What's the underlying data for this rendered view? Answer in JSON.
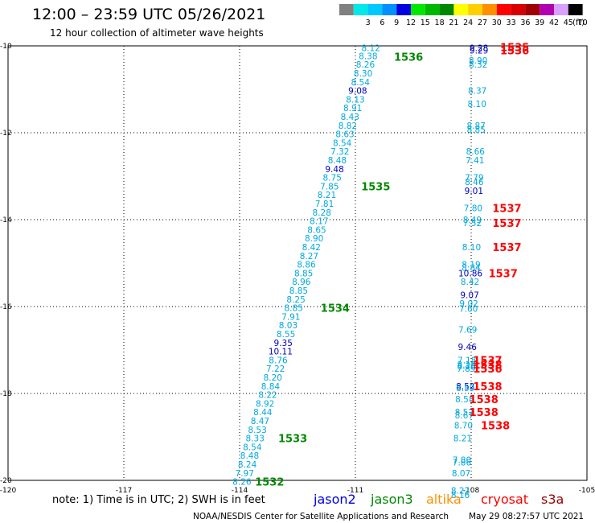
{
  "header": {
    "title": "12:00 – 23:59 UTC 05/26/2021",
    "subtitle": "12 hour collection of altimeter wave heights"
  },
  "scale": {
    "unit": "(ft)",
    "bins": [
      {
        "label": "",
        "color": "#808080"
      },
      {
        "label": "3",
        "color": "#00e8e8"
      },
      {
        "label": "6",
        "color": "#00c8ff"
      },
      {
        "label": "9",
        "color": "#0090ff"
      },
      {
        "label": "12",
        "color": "#0000e0"
      },
      {
        "label": "15",
        "color": "#00e800"
      },
      {
        "label": "18",
        "color": "#00b800"
      },
      {
        "label": "21",
        "color": "#008800"
      },
      {
        "label": "24",
        "color": "#ffff00"
      },
      {
        "label": "27",
        "color": "#ffd000"
      },
      {
        "label": "30",
        "color": "#ff9000"
      },
      {
        "label": "33",
        "color": "#ff0000"
      },
      {
        "label": "36",
        "color": "#d80000"
      },
      {
        "label": "39",
        "color": "#a00000"
      },
      {
        "label": "42",
        "color": "#b000b0"
      },
      {
        "label": "45",
        "color": "#d8a0ff"
      },
      {
        "label": "70",
        "color": "#000000"
      }
    ]
  },
  "footer": {
    "note": "note:  1) Time is in UTC;  2) SWH is in feet",
    "credit": "NOAA/NESDIS Center for Satellite Applications and Research",
    "timestamp": "May 29 08:27:57 UTC 2021"
  },
  "legend": [
    {
      "name": "jason2",
      "color": "#0000e0"
    },
    {
      "name": "jason3",
      "color": "#008800"
    },
    {
      "name": "altika",
      "color": "#ff9000"
    },
    {
      "name": "cryosat",
      "color": "#ff0000"
    },
    {
      "name": "s3a",
      "color": "#a00000"
    }
  ],
  "chart_data": {
    "type": "scatter",
    "title": "12 hour collection of altimeter wave heights",
    "xlabel": "",
    "ylabel": "",
    "xlim": [
      -120,
      -105
    ],
    "ylim": [
      -20,
      -10
    ],
    "xticks": [
      -120,
      -117,
      -114,
      -111,
      -108,
      -105
    ],
    "xtick_labels": [
      "-120",
      "-117",
      "-114",
      "-111",
      "-108",
      "-105"
    ],
    "yticks": [
      -10,
      -12,
      -14,
      -16,
      -18,
      -20
    ],
    "ytick_labels": [
      "-10",
      "-12",
      "-14",
      "-16",
      "-18",
      "-20"
    ],
    "grid": true,
    "tracks": [
      {
        "satellite": "jason3",
        "color": "#00a8e0",
        "points": [
          {
            "x": -110.6,
            "y": -10.05,
            "label": "8.12"
          },
          {
            "x": -110.67,
            "y": -10.23,
            "label": "8.38"
          },
          {
            "x": -110.74,
            "y": -10.43,
            "label": "8.26"
          },
          {
            "x": -110.8,
            "y": -10.63,
            "label": "8.30"
          },
          {
            "x": -110.87,
            "y": -10.83,
            "label": "8.54"
          },
          {
            "x": -110.94,
            "y": -11.03,
            "label": "9.08",
            "color": "#0000c0"
          },
          {
            "x": -111.0,
            "y": -11.23,
            "label": "8.13"
          },
          {
            "x": -111.07,
            "y": -11.43,
            "label": "8.91"
          },
          {
            "x": -111.14,
            "y": -11.63,
            "label": "8.43"
          },
          {
            "x": -111.2,
            "y": -11.83,
            "label": "8.82"
          },
          {
            "x": -111.27,
            "y": -12.03,
            "label": "8.63"
          },
          {
            "x": -111.34,
            "y": -12.23,
            "label": "8.54"
          },
          {
            "x": -111.4,
            "y": -12.43,
            "label": "7.32"
          },
          {
            "x": -111.47,
            "y": -12.63,
            "label": "8.48"
          },
          {
            "x": -111.54,
            "y": -12.83,
            "label": "9.48",
            "color": "#0000c0"
          },
          {
            "x": -111.6,
            "y": -13.03,
            "label": "8.75"
          },
          {
            "x": -111.67,
            "y": -13.23,
            "label": "7.85"
          },
          {
            "x": -111.74,
            "y": -13.43,
            "label": "8.21"
          },
          {
            "x": -111.8,
            "y": -13.63,
            "label": "7.81"
          },
          {
            "x": -111.87,
            "y": -13.83,
            "label": "8.28"
          },
          {
            "x": -111.94,
            "y": -14.03,
            "label": "8.17"
          },
          {
            "x": -112.0,
            "y": -14.23,
            "label": "8.65"
          },
          {
            "x": -112.07,
            "y": -14.43,
            "label": "8.90"
          },
          {
            "x": -112.14,
            "y": -14.63,
            "label": "8.42"
          },
          {
            "x": -112.2,
            "y": -14.83,
            "label": "8.27"
          },
          {
            "x": -112.27,
            "y": -15.03,
            "label": "8.86"
          },
          {
            "x": -112.34,
            "y": -15.23,
            "label": "8.85"
          },
          {
            "x": -112.4,
            "y": -15.43,
            "label": "8.96"
          },
          {
            "x": -112.47,
            "y": -15.63,
            "label": "8.85"
          },
          {
            "x": -112.54,
            "y": -15.83,
            "label": "8.25"
          },
          {
            "x": -112.6,
            "y": -16.03,
            "label": "8.85"
          },
          {
            "x": -112.67,
            "y": -16.23,
            "label": "7.91"
          },
          {
            "x": -112.74,
            "y": -16.43,
            "label": "8.03"
          },
          {
            "x": -112.8,
            "y": -16.63,
            "label": "8.55"
          },
          {
            "x": -112.87,
            "y": -16.83,
            "label": "9.35",
            "color": "#0000c0"
          },
          {
            "x": -112.94,
            "y": -17.03,
            "label": "10.11",
            "color": "#0000c0"
          },
          {
            "x": -113.0,
            "y": -17.23,
            "label": "8.76"
          },
          {
            "x": -113.07,
            "y": -17.43,
            "label": "7.22"
          },
          {
            "x": -113.14,
            "y": -17.63,
            "label": "8.20"
          },
          {
            "x": -113.2,
            "y": -17.83,
            "label": "8.84"
          },
          {
            "x": -113.27,
            "y": -18.03,
            "label": "8.22"
          },
          {
            "x": -113.34,
            "y": -18.23,
            "label": "8.92"
          },
          {
            "x": -113.4,
            "y": -18.43,
            "label": "8.44"
          },
          {
            "x": -113.47,
            "y": -18.63,
            "label": "8.47"
          },
          {
            "x": -113.54,
            "y": -18.83,
            "label": "8.53"
          },
          {
            "x": -113.6,
            "y": -19.03,
            "label": "8.33"
          },
          {
            "x": -113.67,
            "y": -19.23,
            "label": "8.54"
          },
          {
            "x": -113.74,
            "y": -19.43,
            "label": "8.48"
          },
          {
            "x": -113.8,
            "y": -19.63,
            "label": "8.24"
          },
          {
            "x": -113.87,
            "y": -19.83,
            "label": "7.97"
          },
          {
            "x": -113.94,
            "y": -20.03,
            "label": "8.26"
          }
        ]
      },
      {
        "satellite": "cryosat",
        "color": "#00a8e0",
        "points": [
          {
            "x": -107.8,
            "y": -10.05,
            "label": "9.28",
            "color": "#0000c0"
          },
          {
            "x": -107.8,
            "y": -10.1,
            "label": "9.29",
            "color": "#0000c0"
          },
          {
            "x": -107.82,
            "y": -10.33,
            "label": "8.90"
          },
          {
            "x": -107.82,
            "y": -10.43,
            "label": "8.32"
          },
          {
            "x": -107.84,
            "y": -11.03,
            "label": "8.37"
          },
          {
            "x": -107.85,
            "y": -11.33,
            "label": "8.10"
          },
          {
            "x": -107.87,
            "y": -11.83,
            "label": "8.87"
          },
          {
            "x": -107.87,
            "y": -11.93,
            "label": "8.85"
          },
          {
            "x": -107.89,
            "y": -12.43,
            "label": "8.66"
          },
          {
            "x": -107.9,
            "y": -12.63,
            "label": "7.41"
          },
          {
            "x": -107.92,
            "y": -13.03,
            "label": "7.79"
          },
          {
            "x": -107.92,
            "y": -13.13,
            "label": "8.46"
          },
          {
            "x": -107.93,
            "y": -13.33,
            "label": "9.01",
            "color": "#0000c0"
          },
          {
            "x": -107.95,
            "y": -13.73,
            "label": "7.80"
          },
          {
            "x": -107.97,
            "y": -14.0,
            "label": "8.49"
          },
          {
            "x": -107.97,
            "y": -14.07,
            "label": "7.52"
          },
          {
            "x": -107.99,
            "y": -14.63,
            "label": "8.10"
          },
          {
            "x": -108.0,
            "y": -15.03,
            "label": "8.19"
          },
          {
            "x": -108.0,
            "y": -15.1,
            "label": "8.84"
          },
          {
            "x": -108.02,
            "y": -15.23,
            "label": "10.86",
            "color": "#0000c0"
          },
          {
            "x": -108.03,
            "y": -15.43,
            "label": "8.42"
          },
          {
            "x": -108.04,
            "y": -15.73,
            "label": "9.07",
            "color": "#0000c0"
          },
          {
            "x": -108.06,
            "y": -15.93,
            "label": "9.02"
          },
          {
            "x": -108.07,
            "y": -16.05,
            "label": "7.60"
          },
          {
            "x": -108.09,
            "y": -16.53,
            "label": "7.69"
          },
          {
            "x": -108.1,
            "y": -16.93,
            "label": "9.46",
            "color": "#0000c0"
          },
          {
            "x": -108.11,
            "y": -17.23,
            "label": "7.18"
          },
          {
            "x": -108.12,
            "y": -17.33,
            "label": "8.18"
          },
          {
            "x": -108.12,
            "y": -17.37,
            "label": "8.26"
          },
          {
            "x": -108.13,
            "y": -17.43,
            "label": "7.89"
          },
          {
            "x": -108.15,
            "y": -17.83,
            "label": "8.52",
            "color": "#0000c0"
          },
          {
            "x": -108.15,
            "y": -17.87,
            "label": "8.59"
          },
          {
            "x": -108.17,
            "y": -18.13,
            "label": "8.58"
          },
          {
            "x": -108.18,
            "y": -18.43,
            "label": "8.52"
          },
          {
            "x": -108.18,
            "y": -18.5,
            "label": "8.67"
          },
          {
            "x": -108.2,
            "y": -18.73,
            "label": "8.70"
          },
          {
            "x": -108.22,
            "y": -19.03,
            "label": "8.21"
          },
          {
            "x": -108.24,
            "y": -19.53,
            "label": "7.80"
          },
          {
            "x": -108.24,
            "y": -19.58,
            "label": "7.86"
          },
          {
            "x": -108.26,
            "y": -19.83,
            "label": "8.07"
          },
          {
            "x": -108.28,
            "y": -20.23,
            "label": "8.22"
          },
          {
            "x": -108.28,
            "y": -20.33,
            "label": "8.16"
          }
        ]
      }
    ],
    "track_labels": [
      {
        "text": "1536",
        "x": -110.0,
        "y": -10.25,
        "color": "#008800"
      },
      {
        "text": "1535",
        "x": -110.85,
        "y": -13.23,
        "color": "#008800"
      },
      {
        "text": "1534",
        "x": -111.9,
        "y": -16.03,
        "color": "#008800"
      },
      {
        "text": "1533",
        "x": -113.0,
        "y": -19.03,
        "color": "#008800"
      },
      {
        "text": "1532",
        "x": -113.6,
        "y": -20.03,
        "color": "#008800"
      },
      {
        "text": "1535",
        "x": -107.25,
        "y": -10.03,
        "color": "#ff0000"
      },
      {
        "text": "1536",
        "x": -107.25,
        "y": -10.1,
        "color": "#ff0000"
      },
      {
        "text": "1537",
        "x": -107.45,
        "y": -13.73,
        "color": "#ff0000"
      },
      {
        "text": "1537",
        "x": -107.45,
        "y": -14.07,
        "color": "#ff0000"
      },
      {
        "text": "1537",
        "x": -107.45,
        "y": -14.63,
        "color": "#ff0000"
      },
      {
        "text": "1537",
        "x": -107.55,
        "y": -15.23,
        "color": "#ff0000"
      },
      {
        "text": "1537",
        "x": -107.95,
        "y": -17.23,
        "color": "#ff0000"
      },
      {
        "text": "1538",
        "x": -107.95,
        "y": -17.33,
        "color": "#ff0000"
      },
      {
        "text": "1536",
        "x": -107.95,
        "y": -17.43,
        "color": "#ff0000"
      },
      {
        "text": "1538",
        "x": -107.95,
        "y": -17.83,
        "color": "#ff0000"
      },
      {
        "text": "1538",
        "x": -108.05,
        "y": -18.13,
        "color": "#ff0000"
      },
      {
        "text": "1538",
        "x": -108.05,
        "y": -18.43,
        "color": "#ff0000"
      },
      {
        "text": "1538",
        "x": -107.75,
        "y": -18.73,
        "color": "#ff0000"
      }
    ]
  }
}
